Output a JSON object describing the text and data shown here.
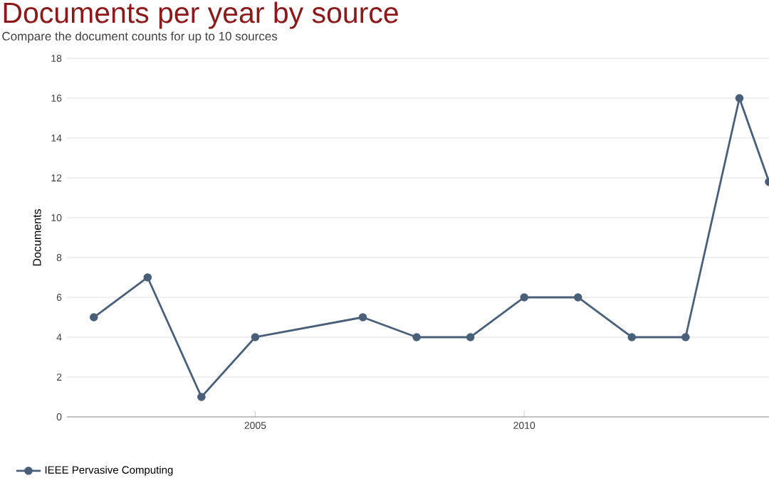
{
  "chart_data": {
    "type": "line",
    "title": "Documents per year by source",
    "subtitle": "Compare the document counts for up to 10 sources",
    "ylabel": "Documents",
    "xlim": [
      2001.5,
      2014.55
    ],
    "xticks": [
      2005,
      2010
    ],
    "ylim": [
      0,
      18
    ],
    "yticks": [
      0,
      2,
      4,
      6,
      8,
      10,
      12,
      14,
      16,
      18
    ],
    "grid": "y",
    "legend": "bottom left",
    "marker": "circle",
    "line_style": "solid",
    "series": [
      {
        "name": "IEEE Pervasive Computing",
        "color": "#4a5f78",
        "x": [
          2002,
          2003,
          2004,
          2005,
          2007,
          2008,
          2009,
          2010,
          2011,
          2012,
          2013,
          2014,
          2014.55
        ],
        "values": [
          5,
          7,
          1,
          4,
          5,
          4,
          4,
          6,
          6,
          4,
          4,
          16,
          11.8
        ]
      }
    ]
  }
}
